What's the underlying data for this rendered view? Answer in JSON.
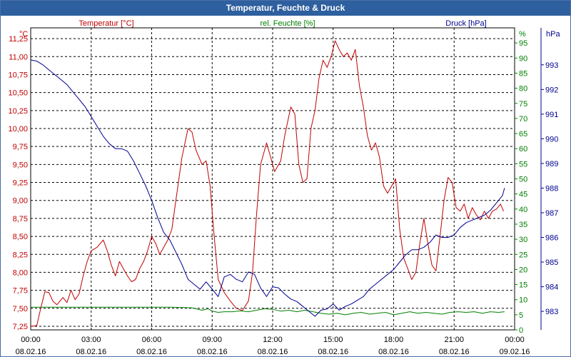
{
  "window": {
    "title": "Temperatur, Feuchte & Druck"
  },
  "chart_data": {
    "type": "line",
    "title": "Temperatur, Feuchte & Druck",
    "colors": {
      "temperature": "#c00000",
      "humidity": "#008000",
      "pressure": "#000090",
      "grid": "#000000",
      "frame": "#000000"
    },
    "axes": {
      "temperature": {
        "label": "Temperatur [°C]",
        "unit": "°C",
        "min": 7.2,
        "max": 11.4,
        "ticks": [
          "7,25",
          "7,50",
          "7,75",
          "8,00",
          "8,25",
          "8,50",
          "8,75",
          "9,00",
          "9,25",
          "9,50",
          "9,75",
          "10,00",
          "10,25",
          "10,50",
          "10,75",
          "11,00",
          "11,25"
        ],
        "tick_values": [
          7.25,
          7.5,
          7.75,
          8.0,
          8.25,
          8.5,
          8.75,
          9.0,
          9.25,
          9.5,
          9.75,
          10.0,
          10.25,
          10.5,
          10.75,
          11.0,
          11.25
        ]
      },
      "humidity": {
        "label": "rel. Feuchte [%]",
        "unit": "%",
        "min": 0,
        "max": 100,
        "ticks": [
          "0",
          "5",
          "10",
          "15",
          "20",
          "25",
          "30",
          "35",
          "40",
          "45",
          "50",
          "55",
          "60",
          "65",
          "70",
          "75",
          "80",
          "85",
          "90",
          "95"
        ],
        "tick_values": [
          0,
          5,
          10,
          15,
          20,
          25,
          30,
          35,
          40,
          45,
          50,
          55,
          60,
          65,
          70,
          75,
          80,
          85,
          90,
          95
        ]
      },
      "pressure": {
        "label": "Druck [hPa]",
        "unit": "hPa",
        "min": 982.25,
        "max": 994.5,
        "ticks": [
          "983",
          "984",
          "985",
          "986",
          "987",
          "988",
          "989",
          "990",
          "991",
          "992",
          "993"
        ],
        "tick_values": [
          983,
          984,
          985,
          986,
          987,
          988,
          989,
          990,
          991,
          992,
          993
        ]
      },
      "x": {
        "min": 0,
        "max": 24,
        "ticks": [
          {
            "time": "00:00",
            "date": "08.02.16",
            "hour": 0
          },
          {
            "time": "03:00",
            "date": "08.02.16",
            "hour": 3
          },
          {
            "time": "06:00",
            "date": "08.02.16",
            "hour": 6
          },
          {
            "time": "09:00",
            "date": "08.02.16",
            "hour": 9
          },
          {
            "time": "12:00",
            "date": "08.02.16",
            "hour": 12
          },
          {
            "time": "15:00",
            "date": "08.02.16",
            "hour": 15
          },
          {
            "time": "18:00",
            "date": "08.02.16",
            "hour": 18
          },
          {
            "time": "21:00",
            "date": "08.02.16",
            "hour": 21
          },
          {
            "time": "00:00",
            "date": "09.02.16",
            "hour": 24
          }
        ]
      }
    },
    "series": [
      {
        "name": "Temperatur [°C]",
        "key": "temperature",
        "axis": "temperature",
        "points": [
          [
            0,
            7.25
          ],
          [
            0.3,
            7.26
          ],
          [
            0.5,
            7.5
          ],
          [
            0.7,
            7.73
          ],
          [
            0.9,
            7.72
          ],
          [
            1.1,
            7.6
          ],
          [
            1.3,
            7.55
          ],
          [
            1.6,
            7.65
          ],
          [
            1.8,
            7.58
          ],
          [
            2.0,
            7.75
          ],
          [
            2.2,
            7.62
          ],
          [
            2.4,
            7.7
          ],
          [
            2.6,
            7.95
          ],
          [
            2.8,
            8.15
          ],
          [
            3.0,
            8.3
          ],
          [
            3.3,
            8.35
          ],
          [
            3.6,
            8.45
          ],
          [
            3.8,
            8.3
          ],
          [
            4.0,
            8.1
          ],
          [
            4.2,
            7.95
          ],
          [
            4.4,
            8.15
          ],
          [
            4.6,
            8.05
          ],
          [
            4.8,
            7.95
          ],
          [
            5.0,
            7.87
          ],
          [
            5.2,
            7.9
          ],
          [
            5.4,
            8.05
          ],
          [
            5.6,
            8.15
          ],
          [
            5.8,
            8.3
          ],
          [
            6.0,
            8.5
          ],
          [
            6.2,
            8.4
          ],
          [
            6.4,
            8.25
          ],
          [
            6.6,
            8.35
          ],
          [
            6.8,
            8.45
          ],
          [
            7.0,
            8.6
          ],
          [
            7.2,
            9.0
          ],
          [
            7.5,
            9.6
          ],
          [
            7.8,
            10.0
          ],
          [
            8.0,
            9.95
          ],
          [
            8.2,
            9.7
          ],
          [
            8.5,
            9.5
          ],
          [
            8.7,
            9.55
          ],
          [
            8.9,
            9.2
          ],
          [
            9.1,
            8.5
          ],
          [
            9.3,
            7.9
          ],
          [
            9.6,
            7.72
          ],
          [
            9.9,
            7.6
          ],
          [
            10.2,
            7.5
          ],
          [
            10.5,
            7.47
          ],
          [
            10.8,
            7.6
          ],
          [
            11.0,
            8.0
          ],
          [
            11.2,
            8.8
          ],
          [
            11.4,
            9.5
          ],
          [
            11.7,
            9.8
          ],
          [
            11.9,
            9.6
          ],
          [
            12.1,
            9.4
          ],
          [
            12.4,
            9.55
          ],
          [
            12.6,
            9.9
          ],
          [
            12.9,
            10.3
          ],
          [
            13.1,
            10.2
          ],
          [
            13.3,
            9.5
          ],
          [
            13.5,
            9.25
          ],
          [
            13.7,
            9.3
          ],
          [
            13.9,
            10.0
          ],
          [
            14.1,
            10.25
          ],
          [
            14.3,
            10.7
          ],
          [
            14.5,
            10.95
          ],
          [
            14.7,
            10.85
          ],
          [
            14.9,
            11.0
          ],
          [
            15.1,
            11.22
          ],
          [
            15.3,
            11.1
          ],
          [
            15.5,
            11.0
          ],
          [
            15.7,
            11.05
          ],
          [
            15.9,
            10.95
          ],
          [
            16.1,
            11.1
          ],
          [
            16.3,
            10.6
          ],
          [
            16.5,
            10.3
          ],
          [
            16.7,
            9.9
          ],
          [
            16.9,
            9.7
          ],
          [
            17.1,
            9.8
          ],
          [
            17.3,
            9.6
          ],
          [
            17.5,
            9.2
          ],
          [
            17.7,
            9.1
          ],
          [
            17.9,
            9.2
          ],
          [
            18.1,
            9.3
          ],
          [
            18.3,
            8.6
          ],
          [
            18.5,
            8.2
          ],
          [
            18.7,
            8.05
          ],
          [
            18.9,
            7.9
          ],
          [
            19.1,
            8.0
          ],
          [
            19.3,
            8.4
          ],
          [
            19.5,
            8.75
          ],
          [
            19.7,
            8.4
          ],
          [
            19.9,
            8.1
          ],
          [
            20.1,
            8.02
          ],
          [
            20.3,
            8.5
          ],
          [
            20.5,
            9.0
          ],
          [
            20.7,
            9.32
          ],
          [
            20.9,
            9.25
          ],
          [
            21.1,
            8.9
          ],
          [
            21.3,
            8.85
          ],
          [
            21.5,
            8.95
          ],
          [
            21.7,
            8.75
          ],
          [
            21.9,
            8.9
          ],
          [
            22.1,
            8.8
          ],
          [
            22.3,
            8.73
          ],
          [
            22.5,
            8.85
          ],
          [
            22.7,
            8.75
          ],
          [
            22.9,
            8.85
          ],
          [
            23.1,
            8.88
          ],
          [
            23.3,
            8.95
          ],
          [
            23.45,
            8.85
          ]
        ]
      },
      {
        "name": "rel. Feuchte [%]",
        "key": "humidity",
        "axis": "humidity",
        "points": [
          [
            0,
            7.5
          ],
          [
            1.0,
            7.5
          ],
          [
            2.0,
            7.5
          ],
          [
            3.0,
            7.5
          ],
          [
            4.0,
            7.5
          ],
          [
            5.0,
            7.5
          ],
          [
            6.0,
            7.5
          ],
          [
            7.0,
            7.5
          ],
          [
            8.0,
            7.3
          ],
          [
            8.5,
            6.5
          ],
          [
            8.8,
            7.0
          ],
          [
            9.0,
            6.2
          ],
          [
            9.3,
            5.8
          ],
          [
            9.6,
            6.0
          ],
          [
            10.0,
            6.0
          ],
          [
            10.4,
            6.3
          ],
          [
            10.8,
            6.0
          ],
          [
            11.2,
            6.5
          ],
          [
            11.6,
            7.0
          ],
          [
            12.0,
            6.8
          ],
          [
            12.4,
            6.2
          ],
          [
            12.8,
            6.5
          ],
          [
            13.2,
            6.0
          ],
          [
            13.6,
            6.5
          ],
          [
            14.0,
            6.0
          ],
          [
            14.4,
            5.5
          ],
          [
            14.8,
            5.2
          ],
          [
            15.2,
            5.5
          ],
          [
            15.6,
            5.0
          ],
          [
            16.0,
            5.5
          ],
          [
            16.4,
            5.8
          ],
          [
            16.8,
            5.2
          ],
          [
            17.2,
            5.5
          ],
          [
            17.6,
            5.8
          ],
          [
            18.0,
            5.0
          ],
          [
            18.4,
            5.5
          ],
          [
            18.8,
            6.0
          ],
          [
            19.2,
            5.5
          ],
          [
            19.6,
            5.8
          ],
          [
            20.0,
            5.5
          ],
          [
            20.4,
            5.2
          ],
          [
            20.8,
            5.8
          ],
          [
            21.2,
            6.0
          ],
          [
            21.6,
            5.8
          ],
          [
            22.0,
            6.0
          ],
          [
            22.4,
            5.5
          ],
          [
            22.8,
            6.0
          ],
          [
            23.2,
            5.8
          ],
          [
            23.5,
            6.0
          ]
        ]
      },
      {
        "name": "Druck [hPa]",
        "key": "pressure",
        "axis": "pressure",
        "points": [
          [
            0,
            993.2
          ],
          [
            0.3,
            993.15
          ],
          [
            0.6,
            993.0
          ],
          [
            0.9,
            992.8
          ],
          [
            1.2,
            992.6
          ],
          [
            1.5,
            992.4
          ],
          [
            1.8,
            992.2
          ],
          [
            2.1,
            991.9
          ],
          [
            2.4,
            991.6
          ],
          [
            2.7,
            991.3
          ],
          [
            3.0,
            990.9
          ],
          [
            3.3,
            990.5
          ],
          [
            3.6,
            990.1
          ],
          [
            3.9,
            989.8
          ],
          [
            4.2,
            989.6
          ],
          [
            4.5,
            989.6
          ],
          [
            4.8,
            989.5
          ],
          [
            5.1,
            989.1
          ],
          [
            5.4,
            988.6
          ],
          [
            5.7,
            988.1
          ],
          [
            6.0,
            987.5
          ],
          [
            6.3,
            986.8
          ],
          [
            6.6,
            986.2
          ],
          [
            6.9,
            985.9
          ],
          [
            7.2,
            985.4
          ],
          [
            7.5,
            984.9
          ],
          [
            7.8,
            984.3
          ],
          [
            8.1,
            984.1
          ],
          [
            8.4,
            983.9
          ],
          [
            8.7,
            984.2
          ],
          [
            9.0,
            983.9
          ],
          [
            9.3,
            983.6
          ],
          [
            9.6,
            984.4
          ],
          [
            9.9,
            984.5
          ],
          [
            10.2,
            984.3
          ],
          [
            10.5,
            984.2
          ],
          [
            10.8,
            984.6
          ],
          [
            11.1,
            984.5
          ],
          [
            11.4,
            983.95
          ],
          [
            11.7,
            983.6
          ],
          [
            12.0,
            984.0
          ],
          [
            12.3,
            983.95
          ],
          [
            12.6,
            983.7
          ],
          [
            12.9,
            983.5
          ],
          [
            13.2,
            983.4
          ],
          [
            13.5,
            983.2
          ],
          [
            13.8,
            983.0
          ],
          [
            14.1,
            982.8
          ],
          [
            14.4,
            983.05
          ],
          [
            14.7,
            983.1
          ],
          [
            15.0,
            983.3
          ],
          [
            15.3,
            983.05
          ],
          [
            15.6,
            983.2
          ],
          [
            15.9,
            983.3
          ],
          [
            16.2,
            983.45
          ],
          [
            16.5,
            983.6
          ],
          [
            16.8,
            983.9
          ],
          [
            17.1,
            984.1
          ],
          [
            17.4,
            984.3
          ],
          [
            17.7,
            984.5
          ],
          [
            18.0,
            984.7
          ],
          [
            18.3,
            985.0
          ],
          [
            18.6,
            985.3
          ],
          [
            18.9,
            985.5
          ],
          [
            19.2,
            985.5
          ],
          [
            19.5,
            985.6
          ],
          [
            19.8,
            985.8
          ],
          [
            20.1,
            986.1
          ],
          [
            20.4,
            986.0
          ],
          [
            20.7,
            986.0
          ],
          [
            21.0,
            986.1
          ],
          [
            21.3,
            986.4
          ],
          [
            21.6,
            986.6
          ],
          [
            21.9,
            986.7
          ],
          [
            22.2,
            986.8
          ],
          [
            22.5,
            986.9
          ],
          [
            22.8,
            987.1
          ],
          [
            23.1,
            987.4
          ],
          [
            23.4,
            987.7
          ],
          [
            23.5,
            988.0
          ]
        ]
      }
    ]
  }
}
